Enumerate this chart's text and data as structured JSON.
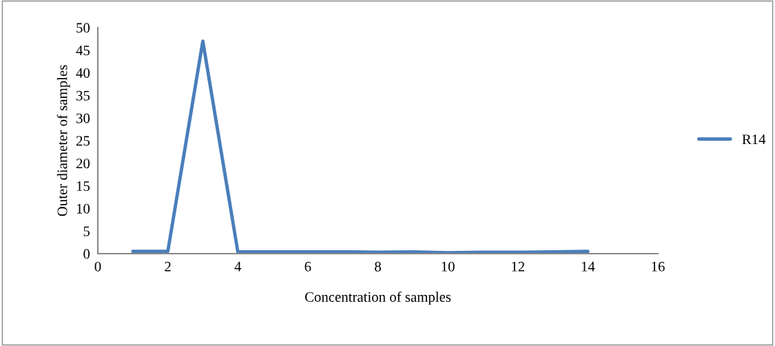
{
  "chart_data": {
    "type": "line",
    "xlabel": "Concentration of samples",
    "ylabel": "Outer diameter of samples",
    "x": [
      1,
      2,
      3,
      4,
      5,
      6,
      7,
      8,
      9,
      10,
      11,
      12,
      13,
      14
    ],
    "series": [
      {
        "name": "R14",
        "color": "#4a7ebb",
        "values": [
          0.5,
          0.5,
          47,
          0.4,
          0.4,
          0.4,
          0.4,
          0.3,
          0.4,
          0.2,
          0.3,
          0.3,
          0.4,
          0.5
        ]
      }
    ],
    "xlim": [
      0,
      16
    ],
    "xticks": [
      0,
      2,
      4,
      6,
      8,
      10,
      12,
      14,
      16
    ],
    "ylim": [
      0,
      50
    ],
    "yticks": [
      0,
      5,
      10,
      15,
      20,
      25,
      30,
      35,
      40,
      45,
      50
    ],
    "grid": false,
    "legend": "right",
    "marker": "none",
    "line_style": "solid"
  }
}
